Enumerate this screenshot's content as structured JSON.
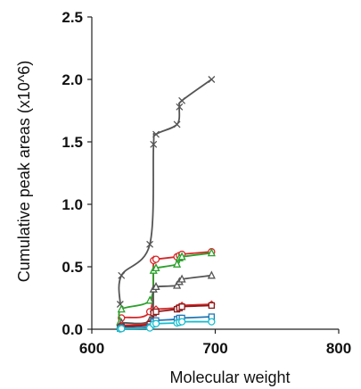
{
  "chart_data": {
    "type": "line",
    "xlabel": "Molecular weight",
    "ylabel": "Cumulative peak areas (x10^6)",
    "xlim": [
      600,
      800
    ],
    "ylim": [
      0.0,
      2.5
    ],
    "x_ticks": [
      600,
      700,
      800
    ],
    "y_ticks": [
      0.0,
      0.5,
      1.0,
      1.5,
      2.0,
      2.5
    ],
    "x_tick_labels": [
      "600",
      "700",
      "800"
    ],
    "y_tick_labels": [
      "0.0",
      "0.5",
      "1.0",
      "1.5",
      "2.0",
      "2.5"
    ],
    "grid": false,
    "legend": "none",
    "series": [
      {
        "color": "#555555",
        "marker": "x",
        "points": [
          [
            623,
            0.2
          ],
          [
            624,
            0.43
          ],
          [
            647,
            0.68
          ],
          [
            650,
            1.48
          ],
          [
            652,
            1.56
          ],
          [
            669,
            1.64
          ],
          [
            671,
            1.78
          ],
          [
            673,
            1.83
          ],
          [
            697,
            2.0
          ]
        ]
      },
      {
        "color": "#d62728",
        "marker": "o",
        "points": [
          [
            623,
            0.03
          ],
          [
            624,
            0.09
          ],
          [
            647,
            0.14
          ],
          [
            650,
            0.55
          ],
          [
            652,
            0.56
          ],
          [
            669,
            0.58
          ],
          [
            671,
            0.59
          ],
          [
            673,
            0.6
          ],
          [
            697,
            0.62
          ]
        ]
      },
      {
        "color": "#2ca02c",
        "marker": "triangle",
        "points": [
          [
            623,
            0.06
          ],
          [
            624,
            0.16
          ],
          [
            647,
            0.23
          ],
          [
            650,
            0.47
          ],
          [
            652,
            0.49
          ],
          [
            669,
            0.52
          ],
          [
            671,
            0.57
          ],
          [
            673,
            0.58
          ],
          [
            697,
            0.61
          ]
        ]
      },
      {
        "color": "#555555",
        "marker": "triangle",
        "points": [
          [
            623,
            0.02
          ],
          [
            624,
            0.05
          ],
          [
            647,
            0.07
          ],
          [
            650,
            0.32
          ],
          [
            652,
            0.34
          ],
          [
            669,
            0.35
          ],
          [
            671,
            0.38
          ],
          [
            673,
            0.4
          ],
          [
            697,
            0.43
          ]
        ]
      },
      {
        "color": "#d62728",
        "marker": "diamond",
        "points": [
          [
            623,
            0.01
          ],
          [
            624,
            0.03
          ],
          [
            647,
            0.05
          ],
          [
            650,
            0.14
          ],
          [
            652,
            0.16
          ],
          [
            669,
            0.17
          ],
          [
            671,
            0.18
          ],
          [
            673,
            0.19
          ],
          [
            697,
            0.2
          ]
        ]
      },
      {
        "color": "#8b1a1a",
        "marker": "square",
        "points": [
          [
            623,
            0.01
          ],
          [
            624,
            0.02
          ],
          [
            647,
            0.04
          ],
          [
            650,
            0.13
          ],
          [
            652,
            0.14
          ],
          [
            669,
            0.16
          ],
          [
            671,
            0.17
          ],
          [
            673,
            0.18
          ],
          [
            697,
            0.19
          ]
        ]
      },
      {
        "color": "#1f77b4",
        "marker": "square",
        "points": [
          [
            623,
            0.005
          ],
          [
            624,
            0.01
          ],
          [
            647,
            0.02
          ],
          [
            650,
            0.06
          ],
          [
            652,
            0.07
          ],
          [
            669,
            0.08
          ],
          [
            671,
            0.09
          ],
          [
            673,
            0.09
          ],
          [
            697,
            0.1
          ]
        ]
      },
      {
        "color": "#17becf",
        "marker": "o",
        "points": [
          [
            623,
            0.002
          ],
          [
            624,
            0.005
          ],
          [
            647,
            0.01
          ],
          [
            650,
            0.04
          ],
          [
            652,
            0.045
          ],
          [
            669,
            0.05
          ],
          [
            671,
            0.055
          ],
          [
            673,
            0.06
          ],
          [
            697,
            0.06
          ]
        ]
      }
    ]
  }
}
